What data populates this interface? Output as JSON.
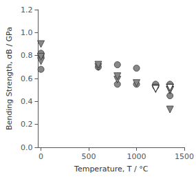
{
  "chart_data": {
    "type": "scatter",
    "xlabel": "Temperature, T / °C",
    "ylabel": "Bending Strength, σB / GPa",
    "xlim": [
      -30,
      1500
    ],
    "ylim": [
      0,
      1.2
    ],
    "xticks": [
      0,
      500,
      1000,
      1500
    ],
    "yticks": [
      {
        "value": 0,
        "label": "0.0"
      },
      0.2,
      0.4,
      0.6,
      0.8,
      {
        "value": 1.0,
        "label": "1.0"
      },
      1.2
    ],
    "grid": false,
    "series": [
      {
        "marker": "circle",
        "color": "#888888",
        "x": [
          0,
          0,
          0,
          0,
          600,
          800,
          800,
          1000,
          1000,
          1200,
          1200,
          1350,
          1350
        ],
        "values": [
          0.68,
          0.79,
          0.81,
          0.82,
          0.7,
          0.72,
          0.55,
          0.69,
          0.55,
          0.53,
          0.55,
          0.45,
          0.55
        ]
      },
      {
        "marker": "triangle-down",
        "color": "#888888",
        "x": [
          0,
          0,
          0,
          600,
          600,
          800,
          800,
          1000,
          1200,
          1350,
          1350
        ],
        "values": [
          0.75,
          0.79,
          0.9,
          0.7,
          0.72,
          0.59,
          0.62,
          0.56,
          0.52,
          0.33,
          0.5
        ]
      },
      {
        "marker": "triangle-down-open",
        "color": "#333333",
        "x": [
          1200,
          1350,
          1350
        ],
        "values": [
          0.51,
          0.5,
          0.52
        ]
      }
    ],
    "background_color": "#ffffff"
  }
}
